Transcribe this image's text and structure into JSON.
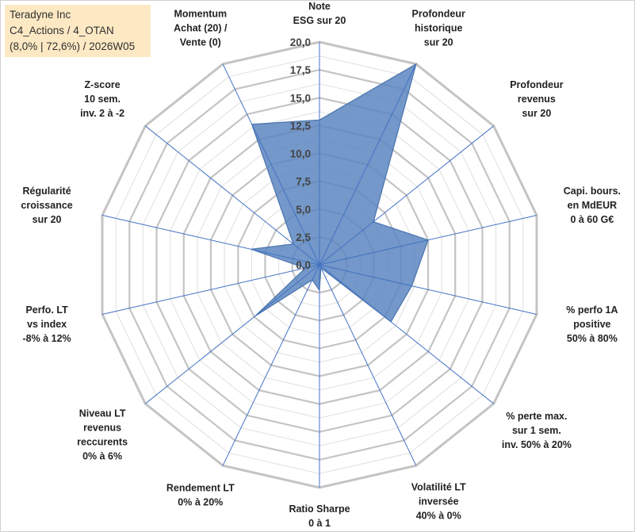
{
  "chart_data": {
    "type": "radar",
    "title_lines": [
      "Teradyne Inc",
      "C4_Actions / 4_OTAN",
      "(8,0% | 72,6%) / 2026W05"
    ],
    "axis_range": [
      0,
      20
    ],
    "tick_labels": [
      "0,0",
      "2,5",
      "5,0",
      "7,5",
      "10,0",
      "12,5",
      "15,0",
      "17,5",
      "20,0"
    ],
    "grid": true,
    "fill_color": "#5b86c0",
    "axes": [
      {
        "label": [
          "Note",
          "ESG sur 20"
        ],
        "value": 13.0
      },
      {
        "label": [
          "Profondeur",
          "historique",
          "sur 20"
        ],
        "value": 20.0
      },
      {
        "label": [
          "Profondeur",
          "revenus",
          "sur 20"
        ],
        "value": 6.2
      },
      {
        "label": [
          "Capi. bours.",
          "en MdEUR",
          "0 à 60 G€"
        ],
        "value": 10.0
      },
      {
        "label": [
          "% perfo 1A",
          "positive",
          "50% à 80%"
        ],
        "value": 8.5
      },
      {
        "label": [
          "% perte max.",
          "sur 1 sem.",
          "inv. 50% à 20%"
        ],
        "value": 8.2
      },
      {
        "label": [
          "Volatilité LT",
          "inversée",
          "40% à 0%"
        ],
        "value": 0.3
      },
      {
        "label": [
          "Ratio Sharpe",
          "0 à 1"
        ],
        "value": 2.3
      },
      {
        "label": [
          "Rendement LT",
          "0% à 20%"
        ],
        "value": 1.5
      },
      {
        "label": [
          "Niveau LT",
          "revenus",
          "reccurents",
          "0% à 6%"
        ],
        "value": 7.4
      },
      {
        "label": [
          "Perfo. LT",
          "vs index",
          "-8% à 12%"
        ],
        "value": 1.3
      },
      {
        "label": [
          "Régularité",
          "croissance",
          "sur 20"
        ],
        "value": 6.3
      },
      {
        "label": [
          "Z-score",
          "10 sem.",
          "inv. 2 à -2"
        ],
        "value": 3.0
      },
      {
        "label": [
          "Momentum",
          "Achat (20) /",
          "Vente (0)"
        ],
        "value": 14.0
      }
    ]
  }
}
